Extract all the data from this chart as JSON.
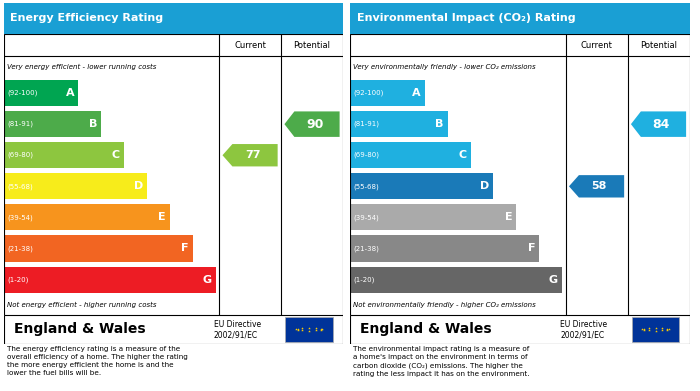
{
  "left_title": "Energy Efficiency Rating",
  "right_title": "Environmental Impact (CO₂) Rating",
  "header_bg": "#1a9fd4",
  "bands": [
    "A",
    "B",
    "C",
    "D",
    "E",
    "F",
    "G"
  ],
  "ranges": [
    "(92-100)",
    "(81-91)",
    "(69-80)",
    "(55-68)",
    "(39-54)",
    "(21-38)",
    "(1-20)"
  ],
  "epc_colors": [
    "#00a551",
    "#4dab4a",
    "#8dc63f",
    "#f7ec1b",
    "#f7941d",
    "#f26522",
    "#ed1c24"
  ],
  "co2_colors": [
    "#1fb0e0",
    "#1fb0e0",
    "#1fb0e0",
    "#1a7ab8",
    "#aaaaaa",
    "#888888",
    "#666666"
  ],
  "current_epc": 77,
  "potential_epc": 90,
  "current_co2": 58,
  "potential_co2": 84,
  "current_epc_band_idx": 2,
  "potential_epc_band_idx": 1,
  "current_co2_band_idx": 3,
  "potential_co2_band_idx": 1,
  "arrow_color_epc_current": "#8dc63f",
  "arrow_color_epc_potential": "#4dab4a",
  "arrow_color_co2_current": "#1a7ab8",
  "arrow_color_co2_potential": "#1fb0e0",
  "left_top_note": "Very energy efficient - lower running costs",
  "left_bottom_note": "Not energy efficient - higher running costs",
  "right_top_note": "Very environmentally friendly - lower CO₂ emissions",
  "right_bottom_note": "Not environmentally friendly - higher CO₂ emissions",
  "footer_title": "England & Wales",
  "footer_directive": "EU Directive\n2002/91/EC",
  "left_footnote": "The energy efficiency rating is a measure of the\noverall efficiency of a home. The higher the rating\nthe more energy efficient the home is and the\nlower the fuel bills will be.",
  "right_footnote": "The environmental impact rating is a measure of\na home's impact on the environment in terms of\ncarbon dioxide (CO₂) emissions. The higher the\nrating the less impact it has on the environment.",
  "eu_flag_bg": "#003399",
  "eu_flag_stars": "#ffcc00"
}
